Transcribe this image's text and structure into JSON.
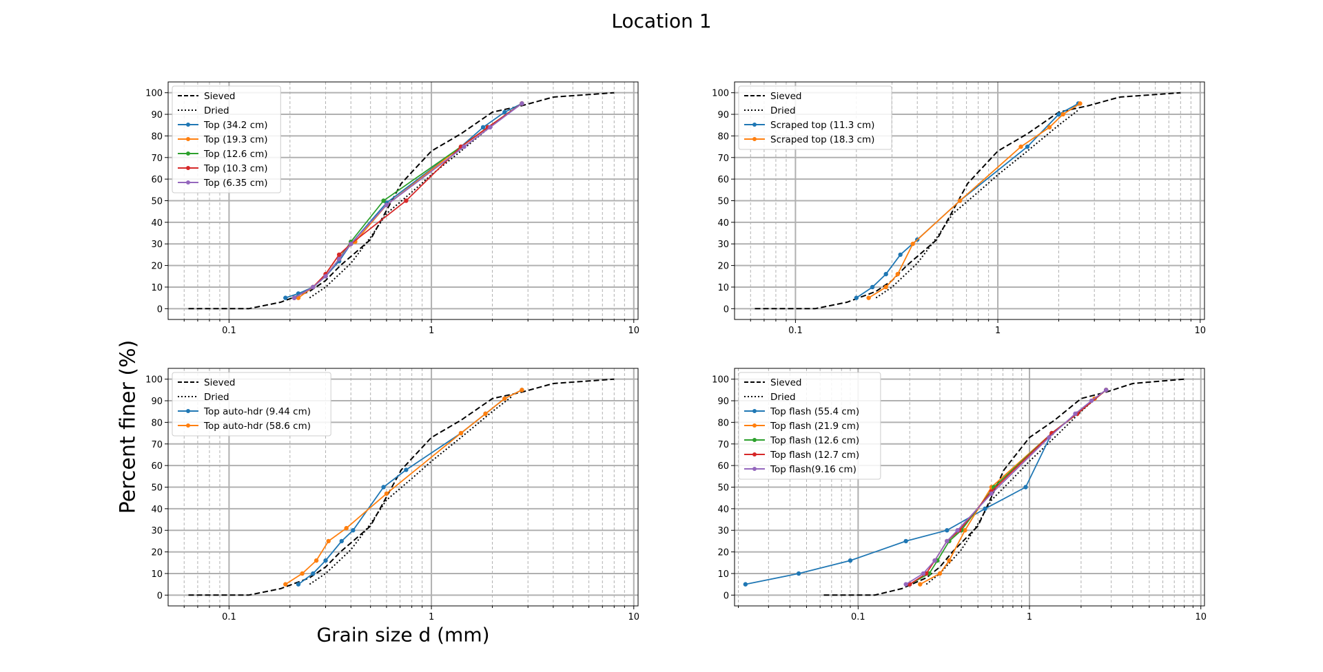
{
  "figure": {
    "title": "Location 1",
    "xlabel": "Grain size d (mm)",
    "ylabel": "Percent finer (%)"
  },
  "chart_data": [
    {
      "type": "line",
      "xscale": "log",
      "xlim": [
        0.05,
        10.5
      ],
      "ylim": [
        -5,
        105
      ],
      "xticks": [
        "0.1",
        "1",
        "10"
      ],
      "yticks": [
        "0",
        "10",
        "20",
        "30",
        "40",
        "50",
        "60",
        "70",
        "80",
        "90",
        "100"
      ],
      "grid": true,
      "legend": "upper-left",
      "series": [
        {
          "name": "Sieved",
          "color": "#000000",
          "style": "dashed",
          "x": [
            0.063,
            0.125,
            0.18,
            0.25,
            0.3,
            0.355,
            0.5,
            0.71,
            1.0,
            1.4,
            2.0,
            2.8,
            4.0,
            8.0
          ],
          "y": [
            0,
            0,
            3,
            8,
            13,
            20,
            32,
            58,
            73,
            81,
            91,
            94,
            98,
            100
          ]
        },
        {
          "name": "Dried",
          "color": "#000000",
          "style": "dotted",
          "x": [
            0.25,
            0.3,
            0.4,
            0.5,
            0.6,
            0.8,
            1.0,
            1.4,
            2.0,
            2.5
          ],
          "y": [
            5,
            10,
            21,
            33,
            44,
            54,
            62,
            73,
            85,
            92
          ]
        },
        {
          "name": "Top (34.2 cm)",
          "color": "#1f77b4",
          "style": "solid",
          "x": [
            0.19,
            0.22,
            0.26,
            0.3,
            0.35,
            0.4,
            0.6,
            1.4,
            1.8,
            2.3,
            2.8
          ],
          "y": [
            5,
            7,
            10,
            15,
            22,
            30,
            49,
            75,
            84,
            91,
            95
          ]
        },
        {
          "name": "Top (19.3 cm)",
          "color": "#ff7f0e",
          "style": "solid",
          "x": [
            0.22,
            0.26,
            0.3,
            0.35,
            0.42,
            0.6,
            1.4,
            1.9,
            2.8
          ],
          "y": [
            5,
            10,
            16,
            25,
            31,
            48,
            75,
            84,
            95
          ]
        },
        {
          "name": "Top (12.6 cm)",
          "color": "#2ca02c",
          "style": "solid",
          "x": [
            0.21,
            0.26,
            0.3,
            0.35,
            0.4,
            0.58,
            1.4,
            1.9,
            2.8
          ],
          "y": [
            5,
            10,
            15,
            23,
            31,
            50,
            75,
            84,
            95
          ]
        },
        {
          "name": "Top (10.3 cm)",
          "color": "#d62728",
          "style": "solid",
          "x": [
            0.21,
            0.26,
            0.3,
            0.35,
            0.4,
            0.75,
            1.4,
            1.9,
            2.8
          ],
          "y": [
            5,
            10,
            16,
            25,
            30,
            50,
            75,
            84,
            95
          ]
        },
        {
          "name": "Top (6.35 cm)",
          "color": "#9467bd",
          "style": "solid",
          "x": [
            0.21,
            0.26,
            0.3,
            0.35,
            0.4,
            0.6,
            1.45,
            1.95,
            2.8
          ],
          "y": [
            5,
            10,
            15,
            23,
            30,
            48,
            75,
            84,
            95
          ]
        }
      ]
    },
    {
      "type": "line",
      "xscale": "log",
      "xlim": [
        0.05,
        10.5
      ],
      "ylim": [
        -5,
        105
      ],
      "xticks": [
        "0.1",
        "1",
        "10"
      ],
      "yticks": [
        "0",
        "10",
        "20",
        "30",
        "40",
        "50",
        "60",
        "70",
        "80",
        "90",
        "100"
      ],
      "grid": true,
      "legend": "upper-left",
      "series": [
        {
          "name": "Sieved",
          "color": "#000000",
          "style": "dashed",
          "x": [
            0.063,
            0.125,
            0.18,
            0.25,
            0.3,
            0.355,
            0.5,
            0.71,
            1.0,
            1.4,
            2.0,
            2.8,
            4.0,
            8.0
          ],
          "y": [
            0,
            0,
            3,
            8,
            13,
            20,
            32,
            58,
            73,
            81,
            91,
            94,
            98,
            100
          ]
        },
        {
          "name": "Dried",
          "color": "#000000",
          "style": "dotted",
          "x": [
            0.25,
            0.3,
            0.4,
            0.5,
            0.6,
            0.8,
            1.0,
            1.4,
            2.0,
            2.5
          ],
          "y": [
            5,
            10,
            21,
            33,
            44,
            54,
            62,
            73,
            85,
            92
          ]
        },
        {
          "name": "Scraped top (11.3 cm)",
          "color": "#1f77b4",
          "style": "solid",
          "x": [
            0.2,
            0.24,
            0.28,
            0.33,
            0.4,
            0.65,
            1.4,
            2.0,
            2.5
          ],
          "y": [
            5,
            10,
            16,
            25,
            32,
            50,
            75,
            90,
            95
          ]
        },
        {
          "name": "Scraped top (18.3 cm)",
          "color": "#ff7f0e",
          "style": "solid",
          "x": [
            0.23,
            0.28,
            0.32,
            0.38,
            0.65,
            1.3,
            1.8,
            2.1,
            2.55
          ],
          "y": [
            5,
            10,
            16,
            30,
            50,
            75,
            84,
            90,
            95
          ]
        }
      ]
    },
    {
      "type": "line",
      "xscale": "log",
      "xlim": [
        0.05,
        10.5
      ],
      "ylim": [
        -5,
        105
      ],
      "xticks": [
        "0.1",
        "1",
        "10"
      ],
      "yticks": [
        "0",
        "10",
        "20",
        "30",
        "40",
        "50",
        "60",
        "70",
        "80",
        "90",
        "100"
      ],
      "grid": true,
      "legend": "upper-left",
      "series": [
        {
          "name": "Sieved",
          "color": "#000000",
          "style": "dashed",
          "x": [
            0.063,
            0.125,
            0.18,
            0.25,
            0.3,
            0.355,
            0.5,
            0.71,
            1.0,
            1.4,
            2.0,
            2.8,
            4.0,
            8.0
          ],
          "y": [
            0,
            0,
            3,
            8,
            13,
            20,
            32,
            58,
            73,
            81,
            91,
            94,
            98,
            100
          ]
        },
        {
          "name": "Dried",
          "color": "#000000",
          "style": "dotted",
          "x": [
            0.25,
            0.3,
            0.4,
            0.5,
            0.6,
            0.8,
            1.0,
            1.4,
            2.0,
            2.5
          ],
          "y": [
            5,
            10,
            21,
            33,
            44,
            54,
            62,
            73,
            85,
            92
          ]
        },
        {
          "name": "Top auto-hdr (9.44 cm)",
          "color": "#1f77b4",
          "style": "solid",
          "x": [
            0.22,
            0.26,
            0.3,
            0.36,
            0.41,
            0.58,
            0.75,
            1.4,
            1.85,
            2.3,
            2.8
          ],
          "y": [
            5,
            10,
            16,
            25,
            30,
            50,
            58,
            75,
            84,
            91,
            95
          ]
        },
        {
          "name": "Top auto-hdr (58.6 cm)",
          "color": "#ff7f0e",
          "style": "solid",
          "x": [
            0.19,
            0.23,
            0.27,
            0.31,
            0.38,
            0.6,
            1.4,
            1.85,
            2.3,
            2.8
          ],
          "y": [
            5,
            10,
            16,
            25,
            31,
            47,
            75,
            84,
            91,
            95
          ]
        }
      ]
    },
    {
      "type": "line",
      "xscale": "log",
      "xlim": [
        0.019,
        10.5
      ],
      "ylim": [
        -5,
        105
      ],
      "xticks": [
        "0.1",
        "1",
        "10"
      ],
      "yticks": [
        "0",
        "10",
        "20",
        "30",
        "40",
        "50",
        "60",
        "70",
        "80",
        "90",
        "100"
      ],
      "grid": true,
      "legend": "upper-left",
      "series": [
        {
          "name": "Sieved",
          "color": "#000000",
          "style": "dashed",
          "x": [
            0.063,
            0.125,
            0.18,
            0.25,
            0.3,
            0.355,
            0.5,
            0.71,
            1.0,
            1.4,
            2.0,
            2.8,
            4.0,
            8.0
          ],
          "y": [
            0,
            0,
            3,
            8,
            13,
            20,
            32,
            58,
            73,
            81,
            91,
            94,
            98,
            100
          ]
        },
        {
          "name": "Dried",
          "color": "#000000",
          "style": "dotted",
          "x": [
            0.25,
            0.3,
            0.4,
            0.5,
            0.6,
            0.8,
            1.0,
            1.4,
            2.0,
            2.5
          ],
          "y": [
            5,
            10,
            21,
            33,
            44,
            54,
            62,
            73,
            85,
            92
          ]
        },
        {
          "name": "Top flash (55.4 cm)",
          "color": "#1f77b4",
          "style": "solid",
          "x": [
            0.022,
            0.045,
            0.09,
            0.19,
            0.33,
            0.55,
            0.95,
            1.35,
            1.9,
            2.4,
            2.8
          ],
          "y": [
            5,
            10,
            16,
            25,
            30,
            40,
            50,
            75,
            84,
            91,
            95
          ]
        },
        {
          "name": "Top flash (21.9 cm)",
          "color": "#ff7f0e",
          "style": "solid",
          "x": [
            0.23,
            0.3,
            0.34,
            0.42,
            0.6,
            1.35,
            1.9,
            2.4,
            2.8
          ],
          "y": [
            5,
            10,
            16,
            30,
            50,
            75,
            84,
            91,
            95
          ]
        },
        {
          "name": "Top flash (12.6 cm)",
          "color": "#2ca02c",
          "style": "solid",
          "x": [
            0.2,
            0.26,
            0.29,
            0.34,
            0.4,
            0.62,
            1.35,
            1.9,
            2.8
          ],
          "y": [
            5,
            10,
            16,
            25,
            30,
            50,
            75,
            84,
            95
          ]
        },
        {
          "name": "Top flash (12.7 cm)",
          "color": "#d62728",
          "style": "solid",
          "x": [
            0.2,
            0.25,
            0.28,
            0.33,
            0.39,
            0.6,
            1.35,
            1.9,
            2.8
          ],
          "y": [
            5,
            10,
            16,
            25,
            30,
            48,
            75,
            84,
            95
          ]
        },
        {
          "name": "Top flash(9.16 cm)",
          "color": "#9467bd",
          "style": "solid",
          "x": [
            0.19,
            0.24,
            0.28,
            0.33,
            0.38,
            0.6,
            1.3,
            1.85,
            2.3,
            2.8
          ],
          "y": [
            5,
            10,
            16,
            25,
            30,
            47,
            73,
            84,
            90,
            95
          ]
        }
      ]
    }
  ]
}
